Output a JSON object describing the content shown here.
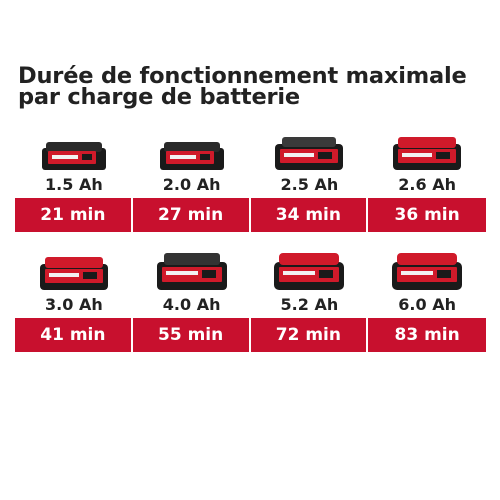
{
  "title": "Durée de fonctionnement maximale par charge de batterie",
  "colors": {
    "accent": "#c8102e",
    "battery_body": "#1a1a1a",
    "battery_red": "#d01a2a"
  },
  "batteries": [
    {
      "capacity": "1.5 Ah",
      "runtime": "21 min",
      "icon": "battery-compact-icon"
    },
    {
      "capacity": "2.0 Ah",
      "runtime": "27 min",
      "icon": "battery-compact-icon"
    },
    {
      "capacity": "2.5 Ah",
      "runtime": "34 min",
      "icon": "battery-plus-icon"
    },
    {
      "capacity": "2.6 Ah",
      "runtime": "36 min",
      "icon": "battery-plus-icon"
    },
    {
      "capacity": "3.0 Ah",
      "runtime": "41 min",
      "icon": "battery-plus-icon"
    },
    {
      "capacity": "4.0 Ah",
      "runtime": "55 min",
      "icon": "battery-large-icon"
    },
    {
      "capacity": "5.2 Ah",
      "runtime": "72 min",
      "icon": "battery-large-icon"
    },
    {
      "capacity": "6.0 Ah",
      "runtime": "83 min",
      "icon": "battery-large-icon"
    }
  ]
}
